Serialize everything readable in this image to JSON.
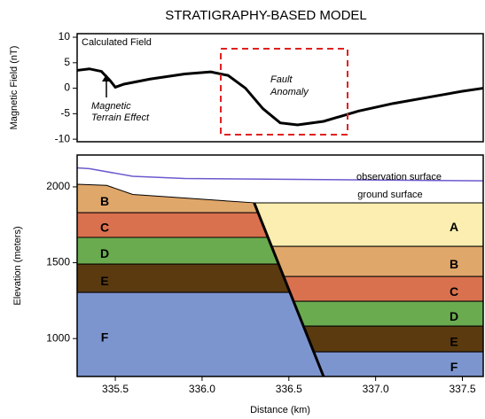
{
  "chart_data": [
    {
      "type": "line",
      "title": "STRATIGRAPHY-BASED MODEL",
      "y_label": "Magnetic Field (nT)",
      "annotations": [
        "Calculated Field",
        "Magnetic",
        "Terrain Effect",
        "Fault",
        "Anomaly"
      ],
      "xlim": [
        335.28,
        337.62
      ],
      "ylim": [
        -10.5,
        10.7
      ],
      "yticks": [
        10,
        5,
        0,
        -5,
        -10
      ],
      "series": [
        {
          "color": "#000000",
          "x": [
            335.28,
            335.35,
            335.42,
            335.47,
            335.5,
            335.55,
            335.7,
            335.9,
            336.05,
            336.15,
            336.25,
            336.35,
            336.45,
            336.55,
            336.7,
            336.9,
            337.1,
            337.3,
            337.5,
            337.62
          ],
          "values": [
            3.5,
            3.8,
            3.3,
            1.5,
            0.2,
            0.8,
            1.8,
            2.8,
            3.2,
            2.5,
            0,
            -4,
            -6.8,
            -7.2,
            -6.5,
            -4.5,
            -3,
            -1.8,
            -0.6,
            0
          ]
        }
      ]
    },
    {
      "type": "cross-section",
      "x_label": "Distance (km)",
      "y_label": "Elevation (meters)",
      "xlim": [
        335.28,
        337.62
      ],
      "ylim": [
        750,
        2210
      ],
      "xticks": [
        335.5,
        {
          "value": 336,
          "label": "336.0"
        },
        336.5,
        {
          "value": 337,
          "label": "337.0"
        },
        337.5
      ],
      "yticks": [
        1000,
        1500,
        2000
      ],
      "annotations": [
        "ground surface"
      ],
      "lines": [
        {
          "name": "observation surface",
          "color": "#6a5acd",
          "x": [
            335.28,
            335.35,
            335.6,
            335.9,
            337.62
          ],
          "y": [
            2125,
            2120,
            2070,
            2055,
            2040
          ]
        }
      ],
      "fault": {
        "x": [
          336.3,
          336.7
        ],
        "y": [
          1895,
          750
        ]
      },
      "layers": [
        {
          "name": "B",
          "color": "#e0a76a",
          "x": [
            335.28,
            335.45,
            335.6,
            336.3,
            336.323,
            335.28
          ],
          "y": [
            2017,
            2010,
            1950,
            1895,
            1830,
            1830
          ]
        },
        {
          "name": "C",
          "color": "#d9714f",
          "x": [
            335.28,
            336.323,
            336.38,
            335.28
          ],
          "y": [
            1830,
            1830,
            1667,
            1667
          ]
        },
        {
          "name": "D",
          "color": "#6aab4f",
          "x": [
            335.28,
            336.38,
            336.441,
            335.28
          ],
          "y": [
            1667,
            1667,
            1491,
            1491
          ]
        },
        {
          "name": "E",
          "color": "#5b3a10",
          "x": [
            335.28,
            336.441,
            336.506,
            335.28
          ],
          "y": [
            1491,
            1491,
            1304,
            1304
          ]
        },
        {
          "name": "F",
          "color": "#7d95cf",
          "x": [
            335.28,
            336.506,
            336.7,
            335.28
          ],
          "y": [
            1304,
            1304,
            750,
            750
          ]
        },
        {
          "name": "A",
          "color": "#fbeeb0",
          "x": [
            336.3,
            337.62,
            337.62,
            336.4
          ],
          "y": [
            1895,
            1895,
            1608,
            1608
          ]
        },
        {
          "name": "B",
          "color": "#e0a76a",
          "x": [
            336.4,
            337.62,
            337.62,
            336.47
          ],
          "y": [
            1608,
            1608,
            1409,
            1409
          ]
        },
        {
          "name": "C",
          "color": "#d9714f",
          "x": [
            336.47,
            337.62,
            337.62,
            336.527
          ],
          "y": [
            1409,
            1409,
            1246,
            1246
          ]
        },
        {
          "name": "D",
          "color": "#6aab4f",
          "x": [
            336.527,
            337.62,
            337.62,
            336.584
          ],
          "y": [
            1246,
            1246,
            1082,
            1082
          ]
        },
        {
          "name": "E",
          "color": "#5b3a10",
          "x": [
            336.584,
            337.62,
            337.62,
            336.643
          ],
          "y": [
            1082,
            1082,
            912,
            912
          ]
        },
        {
          "name": "F",
          "color": "#7d95cf",
          "x": [
            336.643,
            337.62,
            337.62,
            336.7
          ],
          "y": [
            912,
            912,
            750,
            750
          ]
        }
      ]
    }
  ]
}
